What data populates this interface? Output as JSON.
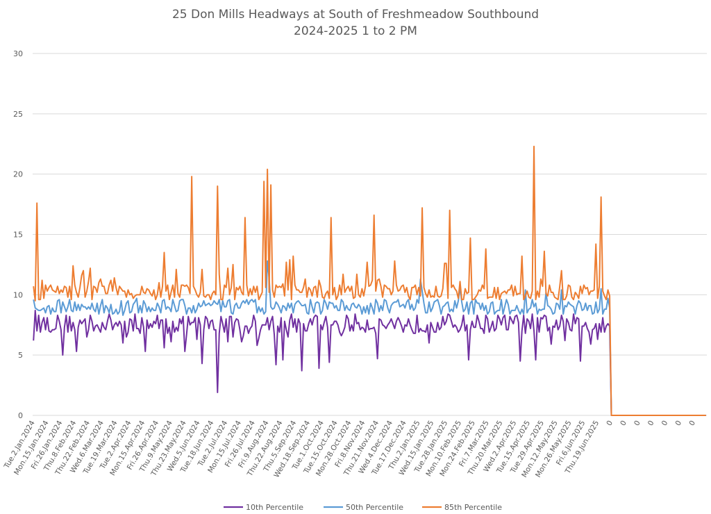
{
  "chart_data": {
    "type": "line",
    "title": "25 Don Mills Headways at South of Freshmeadow Southbound",
    "subtitle": "2024-2025 1 to 2 PM",
    "xlabel": "",
    "ylabel": "",
    "ylim": [
      0,
      30
    ],
    "yticks": [
      "0",
      "5",
      "10",
      "15",
      "20",
      "25",
      "30"
    ],
    "ytick_values": [
      0,
      5,
      10,
      15,
      20,
      25,
      30
    ],
    "grid": true,
    "legend": "bottom",
    "category_count": 392,
    "label_every": 8,
    "x_tick_labels": [
      "Tue.2.Jan.2024",
      "Mon.15.Jan.2024",
      "Fri.26.Jan.2024",
      "Thu.8.Feb.2024",
      "Thu.22.Feb.2024",
      "Wed.6.Mar.2024",
      "Tue.19.Mar.2024",
      "Tue.2.Apr.2024",
      "Mon.15.Apr.2024",
      "Fri.26.Apr.2024",
      "Thu.9.May.2024",
      "Thu.23.May.2024",
      "Wed.5.Jun.2024",
      "Tue.18.Jun.2024",
      "Tue.2.Jul.2024",
      "Mon.15.Jul.2024",
      "Fri.26.Jul.2024",
      "Fri.9.Aug.2024",
      "Thu.22.Aug.2024",
      "Thu.5.Sep.2024",
      "Wed.18.Sep.2024",
      "Tue.1.Oct.2024",
      "Tue.15.Oct.2024",
      "Mon.28.Oct.2024",
      "Fri.8.Nov.2024",
      "Thu.21.Nov.2024",
      "Wed.4.Dec.2024",
      "Tue.17.Dec.2024",
      "Thu.2.Jan.2025",
      "Wed.15.Jan.2025",
      "Tue.28.Jan.2025",
      "Mon.10.Feb.2025",
      "Mon.24.Feb.2025",
      "Fri.7.Mar.2025",
      "Thu.20.Mar.2025",
      "Wed.2.Apr.2025",
      "Tue.15.Apr.2025",
      "Tue.29.Apr.2025",
      "Mon.12.May.2025",
      "Mon.26.May.2025",
      "Fri.6.Jun.2025",
      "Thu.19.Jun.2025",
      "0",
      "0",
      "0",
      "0",
      "0",
      "0",
      "0"
    ],
    "series": [
      {
        "name": "10th Percentile",
        "color": "#7030A0",
        "data_points": 336,
        "peaks": [
          [
            0,
            6.2
          ],
          [
            1,
            8.7
          ],
          [
            17,
            5.0
          ],
          [
            25,
            5.3
          ],
          [
            76,
            5.6
          ],
          [
            98,
            4.3
          ],
          [
            107,
            1.9
          ],
          [
            141,
            4.2
          ],
          [
            145,
            4.6
          ],
          [
            156,
            3.7
          ],
          [
            166,
            3.9
          ],
          [
            172,
            4.4
          ],
          [
            200,
            4.7
          ],
          [
            253,
            4.6
          ],
          [
            283,
            4.5
          ],
          [
            292,
            4.6
          ],
          [
            318,
            4.5
          ],
          [
            334,
            7.6
          ]
        ],
        "base": 7.6,
        "trailing_zeros": 56
      },
      {
        "name": "50th Percentile",
        "color": "#5B9BD5",
        "data_points": 336,
        "peaks": [
          [
            0,
            9.6
          ],
          [
            2,
            8.8
          ],
          [
            36,
            8.6
          ],
          [
            52,
            8.3
          ],
          [
            60,
            9.7
          ],
          [
            136,
            12.8
          ],
          [
            137,
            11.4
          ],
          [
            225,
            11.3
          ],
          [
            226,
            10.3
          ],
          [
            248,
            10.6
          ],
          [
            286,
            10.4
          ],
          [
            298,
            10.2
          ],
          [
            307,
            10.4
          ],
          [
            330,
            10.5
          ],
          [
            334,
            9.7
          ]
        ],
        "base": 9.0,
        "trailing_zeros": 56
      },
      {
        "name": "85th Percentile",
        "color": "#ED7D31",
        "data_points": 336,
        "peaks": [
          [
            0,
            10.7
          ],
          [
            1,
            9.5
          ],
          [
            2,
            17.6
          ],
          [
            3,
            9.6
          ],
          [
            5,
            11.2
          ],
          [
            28,
            11.6
          ],
          [
            76,
            13.5
          ],
          [
            92,
            19.8
          ],
          [
            98,
            12.1
          ],
          [
            107,
            19.0
          ],
          [
            116,
            12.5
          ],
          [
            123,
            16.4
          ],
          [
            134,
            19.4
          ],
          [
            136,
            20.4
          ],
          [
            138,
            19.1
          ],
          [
            149,
            12.9
          ],
          [
            151,
            13.2
          ],
          [
            173,
            16.4
          ],
          [
            194,
            12.7
          ],
          [
            198,
            16.6
          ],
          [
            210,
            12.8
          ],
          [
            226,
            17.2
          ],
          [
            242,
            17.0
          ],
          [
            254,
            14.7
          ],
          [
            263,
            13.8
          ],
          [
            284,
            13.2
          ],
          [
            291,
            22.3
          ],
          [
            297,
            13.6
          ],
          [
            307,
            12.0
          ],
          [
            327,
            14.2
          ],
          [
            330,
            18.1
          ],
          [
            334,
            10.4
          ],
          [
            335,
            9.9
          ]
        ],
        "base": 10.2,
        "trailing_zeros": 56
      }
    ]
  }
}
